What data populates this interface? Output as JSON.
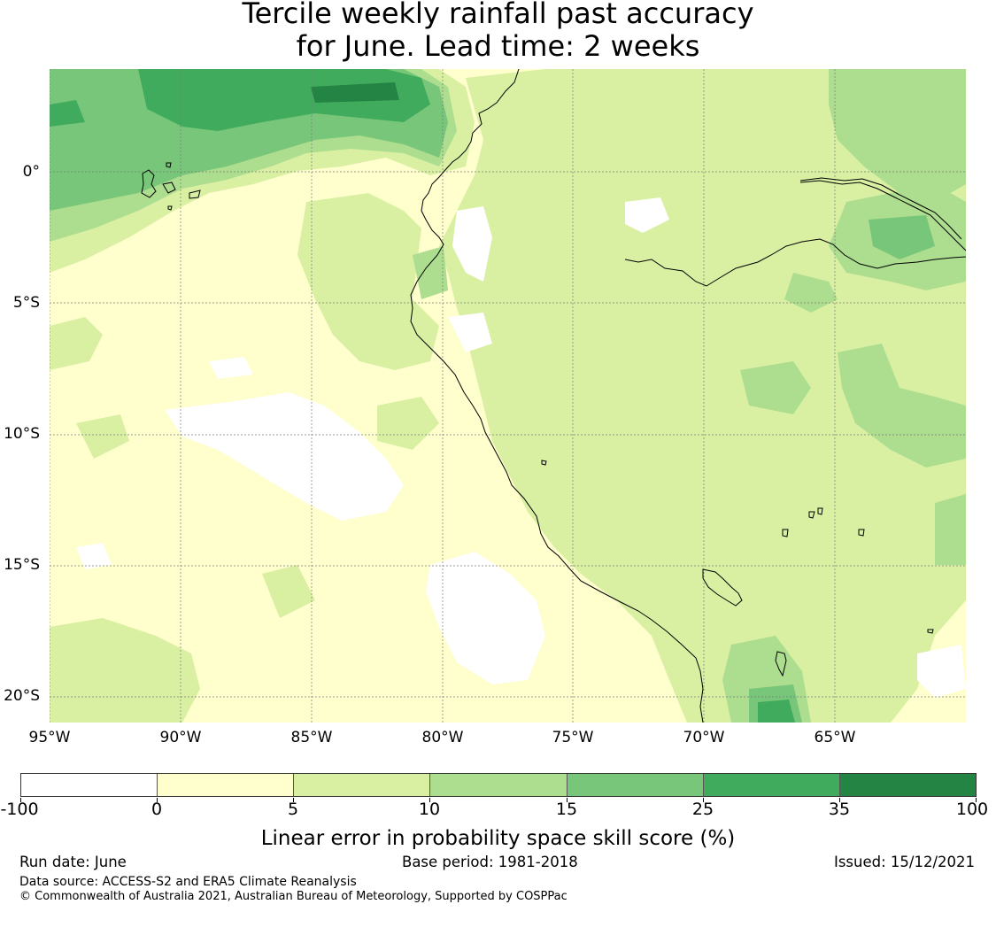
{
  "title_line1": "Tercile weekly rainfall past accuracy",
  "title_line2": "for June. Lead time: 2 weeks",
  "map": {
    "lat_labels": [
      "0°",
      "5°S",
      "10°S",
      "15°S",
      "20°S"
    ],
    "lon_labels": [
      "95°W",
      "90°W",
      "85°W",
      "80°W",
      "75°W",
      "70°W",
      "65°W"
    ],
    "gridline_color": "#7a7a7a",
    "coastline_color": "#000000"
  },
  "colorbar": {
    "bins": [
      {
        "range": "-100 to 0",
        "color": "#ffffff"
      },
      {
        "range": "0 to 5",
        "color": "#fffecd"
      },
      {
        "range": "5 to 10",
        "color": "#d9f0a3"
      },
      {
        "range": "10 to 15",
        "color": "#addd8e"
      },
      {
        "range": "15 to 25",
        "color": "#78c679"
      },
      {
        "range": "25 to 35",
        "color": "#41ab5d"
      },
      {
        "range": "35 to 100",
        "color": "#238443"
      }
    ],
    "ticks": [
      "-100",
      "0",
      "5",
      "10",
      "15",
      "25",
      "35",
      "100"
    ],
    "label": "Linear error in probability space skill score (%)"
  },
  "footer": {
    "run_date": "Run date: June",
    "base_period": "Base period: 1981-2018",
    "issued": "Issued: 15/12/2021",
    "data_source": "Data source: ACCESS-S2 and ERA5 Climate Reanalysis",
    "copyright": "© Commonwealth of Australia 2021, Australian Bureau of Meteorology, Supported by COSPPac"
  }
}
